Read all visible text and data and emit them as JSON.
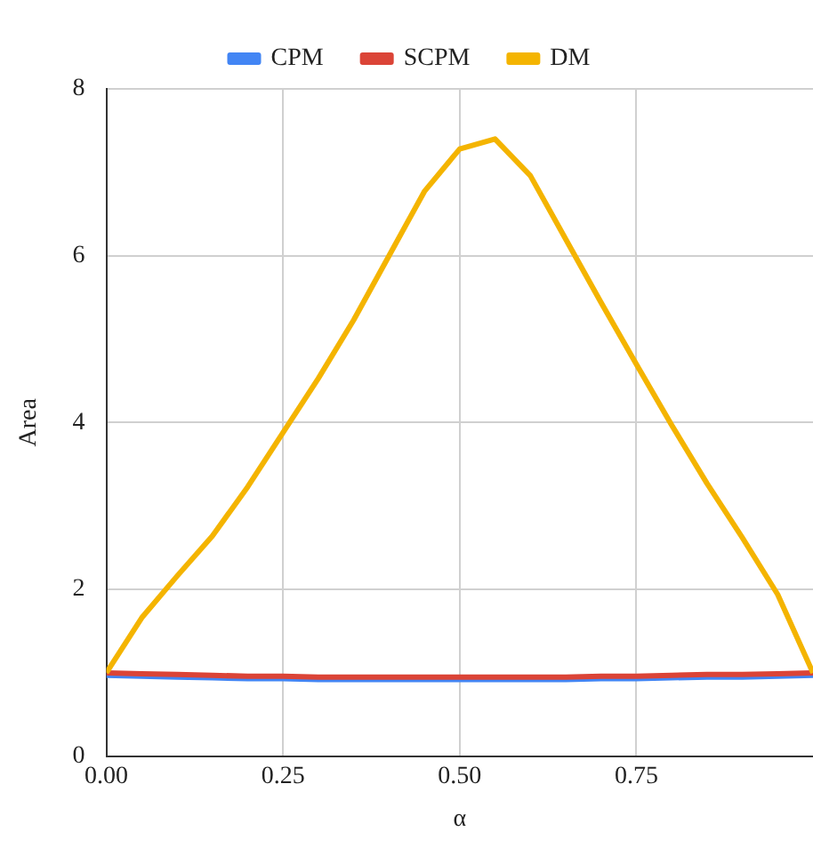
{
  "chart_data": {
    "type": "line",
    "xlabel": "α",
    "ylabel": "Area",
    "x": [
      0,
      0.05,
      0.1,
      0.15,
      0.2,
      0.25,
      0.3,
      0.35,
      0.4,
      0.45,
      0.5,
      0.55,
      0.6,
      0.65,
      0.7,
      0.75,
      0.8,
      0.85,
      0.9,
      0.95,
      1
    ],
    "series": [
      {
        "name": "CPM",
        "color": "#4285f4",
        "values": [
          0.97,
          0.96,
          0.95,
          0.94,
          0.93,
          0.93,
          0.92,
          0.92,
          0.92,
          0.92,
          0.92,
          0.92,
          0.92,
          0.92,
          0.93,
          0.93,
          0.94,
          0.95,
          0.95,
          0.96,
          0.97
        ]
      },
      {
        "name": "SCPM",
        "color": "#db4437",
        "values": [
          1.0,
          0.99,
          0.98,
          0.97,
          0.96,
          0.96,
          0.95,
          0.95,
          0.95,
          0.95,
          0.95,
          0.95,
          0.95,
          0.95,
          0.96,
          0.96,
          0.97,
          0.98,
          0.98,
          0.99,
          1.0
        ]
      },
      {
        "name": "DM",
        "color": "#f4b400",
        "values": [
          1.0,
          1.66,
          2.16,
          2.64,
          3.23,
          3.88,
          4.53,
          5.23,
          6.0,
          6.77,
          7.28,
          7.4,
          6.96,
          6.2,
          5.44,
          4.7,
          3.97,
          3.27,
          2.62,
          1.94,
          1.0
        ]
      }
    ],
    "xlim": [
      0,
      1
    ],
    "xticks": [
      {
        "value": 0,
        "label": "0.00"
      },
      {
        "value": 0.25,
        "label": "0.25"
      },
      {
        "value": 0.5,
        "label": "0.50"
      },
      {
        "value": 0.75,
        "label": "0.75"
      }
    ],
    "ylim": [
      0,
      8
    ],
    "yticks": [
      0,
      2,
      4,
      6,
      8
    ],
    "grid": true,
    "legend": "top",
    "marker": "none",
    "line_style": "solid"
  }
}
